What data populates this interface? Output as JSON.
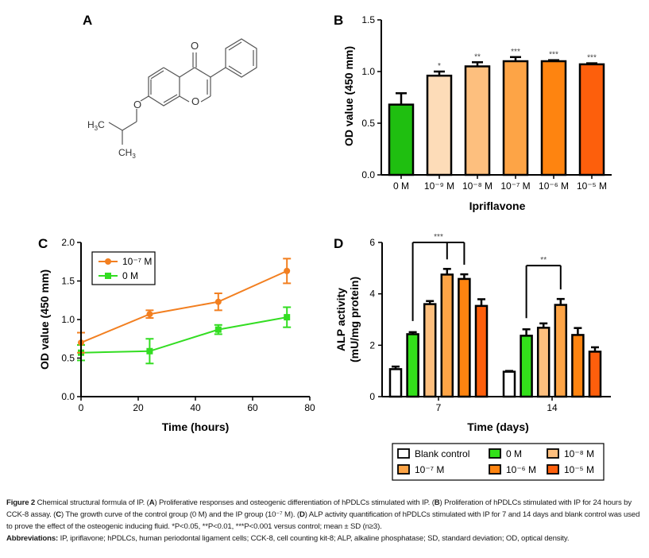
{
  "panels": {
    "A": {
      "label": "A",
      "title": "Chemical structure of ipriflavone",
      "atoms": {
        "carbonyl_O": "O",
        "ring_O": "O",
        "ether_O": "O",
        "methyl1": "H3C",
        "methyl2": "CH3"
      }
    },
    "B": {
      "label": "B"
    },
    "C": {
      "label": "C"
    },
    "D": {
      "label": "D"
    }
  },
  "chart_data": [
    {
      "id": "B",
      "type": "bar",
      "title": "",
      "xlabel": "Ipriflavone",
      "ylabel": "OD value (450 mm)",
      "ylim": [
        0,
        1.5
      ],
      "yticks": [
        "0.0",
        "0.5",
        "1.0",
        "1.5"
      ],
      "ytick_values": [
        0,
        0.5,
        1.0,
        1.5
      ],
      "categories": [
        "0 M",
        "10⁻⁹ M",
        "10⁻⁸ M",
        "10⁻⁷ M",
        "10⁻⁶ M",
        "10⁻⁵ M"
      ],
      "values": [
        0.68,
        0.96,
        1.05,
        1.1,
        1.1,
        1.07
      ],
      "errors": [
        0.11,
        0.04,
        0.04,
        0.04,
        0.01,
        0.01
      ],
      "significance": [
        "",
        "*",
        "**",
        "***",
        "***",
        "***"
      ],
      "colors": [
        "#1fbf10",
        "#fddcb8",
        "#fdbf7e",
        "#fda446",
        "#fe8410",
        "#fd5f0c"
      ],
      "grid": false
    },
    {
      "id": "C",
      "type": "line",
      "title": "",
      "xlabel": "Time (hours)",
      "ylabel": "OD value (450 mm)",
      "xlim": [
        0,
        80
      ],
      "ylim": [
        0,
        2.0
      ],
      "xticks": [
        "0",
        "20",
        "40",
        "60",
        "80"
      ],
      "xtick_values": [
        0,
        20,
        40,
        60,
        80
      ],
      "yticks": [
        "0.0",
        "0.5",
        "1.0",
        "1.5",
        "2.0"
      ],
      "ytick_values": [
        0,
        0.5,
        1.0,
        1.5,
        2.0
      ],
      "x": [
        0,
        24,
        48,
        72
      ],
      "series": [
        {
          "name": "10⁻⁷ M",
          "marker": "circle",
          "color": "#f27f20",
          "values": [
            0.7,
            1.07,
            1.23,
            1.63
          ],
          "errors": [
            0.13,
            0.05,
            0.11,
            0.16
          ]
        },
        {
          "name": "0 M",
          "marker": "square",
          "color": "#33dd22",
          "values": [
            0.57,
            0.59,
            0.87,
            1.03
          ],
          "errors": [
            0.1,
            0.16,
            0.06,
            0.13
          ]
        }
      ],
      "legend": "top-left",
      "grid": false
    },
    {
      "id": "D",
      "type": "bar",
      "title": "",
      "xlabel": "Time (days)",
      "ylabel": "ALP activity (mU/mg protein)",
      "ylabel_lines": [
        "ALP activity",
        "(mU/mg protein)"
      ],
      "ylim": [
        0,
        6
      ],
      "yticks": [
        "0",
        "2",
        "4",
        "6"
      ],
      "ytick_values": [
        0,
        2,
        4,
        6
      ],
      "categories": [
        "7",
        "14"
      ],
      "series": [
        {
          "name": "Blank control",
          "color": "#ffffff",
          "values": [
            1.07,
            0.97
          ],
          "errors": [
            0.1,
            0.03
          ]
        },
        {
          "name": "0 M",
          "color": "#33e01a",
          "values": [
            2.43,
            2.37
          ],
          "errors": [
            0.08,
            0.25
          ]
        },
        {
          "name": "10⁻⁸ M",
          "color": "#fdbf7e",
          "values": [
            3.6,
            2.68
          ],
          "errors": [
            0.12,
            0.17
          ]
        },
        {
          "name": "10⁻⁷ M",
          "color": "#fda446",
          "values": [
            4.75,
            3.57
          ],
          "errors": [
            0.22,
            0.23
          ]
        },
        {
          "name": "10⁻⁶ M",
          "color": "#fe8410",
          "values": [
            4.58,
            2.4
          ],
          "errors": [
            0.18,
            0.27
          ]
        },
        {
          "name": "10⁻⁵ M",
          "color": "#fd5f0c",
          "values": [
            3.53,
            1.75
          ],
          "errors": [
            0.26,
            0.17
          ]
        }
      ],
      "brackets": [
        {
          "group": "7",
          "from_series": 1,
          "to_series": [
            3,
            4
          ],
          "label": "***",
          "level": 6.0
        },
        {
          "group": "14",
          "from_series": 1,
          "to_series": [
            3
          ],
          "label": "**",
          "level": 5.1
        }
      ],
      "legend": "bottom",
      "grid": false
    }
  ],
  "caption": {
    "fig_label": "Figure 2",
    "text1": " Chemical structural formula of IP. (",
    "A": "A",
    "text2": ") Proliferative responses and osteogenic differentiation of hPDLCs stimulated with IP. (",
    "B": "B",
    "text3": ") Proliferation of hPDLCs stimulated with IP for 24 hours by CCK-8 assay. (",
    "C": "C",
    "text4": ") The growth curve of the control group (0 M) and the IP group (10⁻⁷ M). (",
    "D": "D",
    "text5": ") ALP activity quantification of hPDLCs stimulated with IP for 7 and 14 days and blank control was used to prove the effect of the osteogenic inducing fluid. *P<0.05, **P<0.01, ***P<0.001 versus control; mean ± SD (n≥3).",
    "abbrev_label": "Abbreviations:",
    "abbrev_text": " IP, ipriflavone; hPDLCs, human periodontal ligament cells; CCK-8, cell counting kit-8; ALP, alkaline phosphatase; SD, standard deviation; OD, optical density."
  }
}
